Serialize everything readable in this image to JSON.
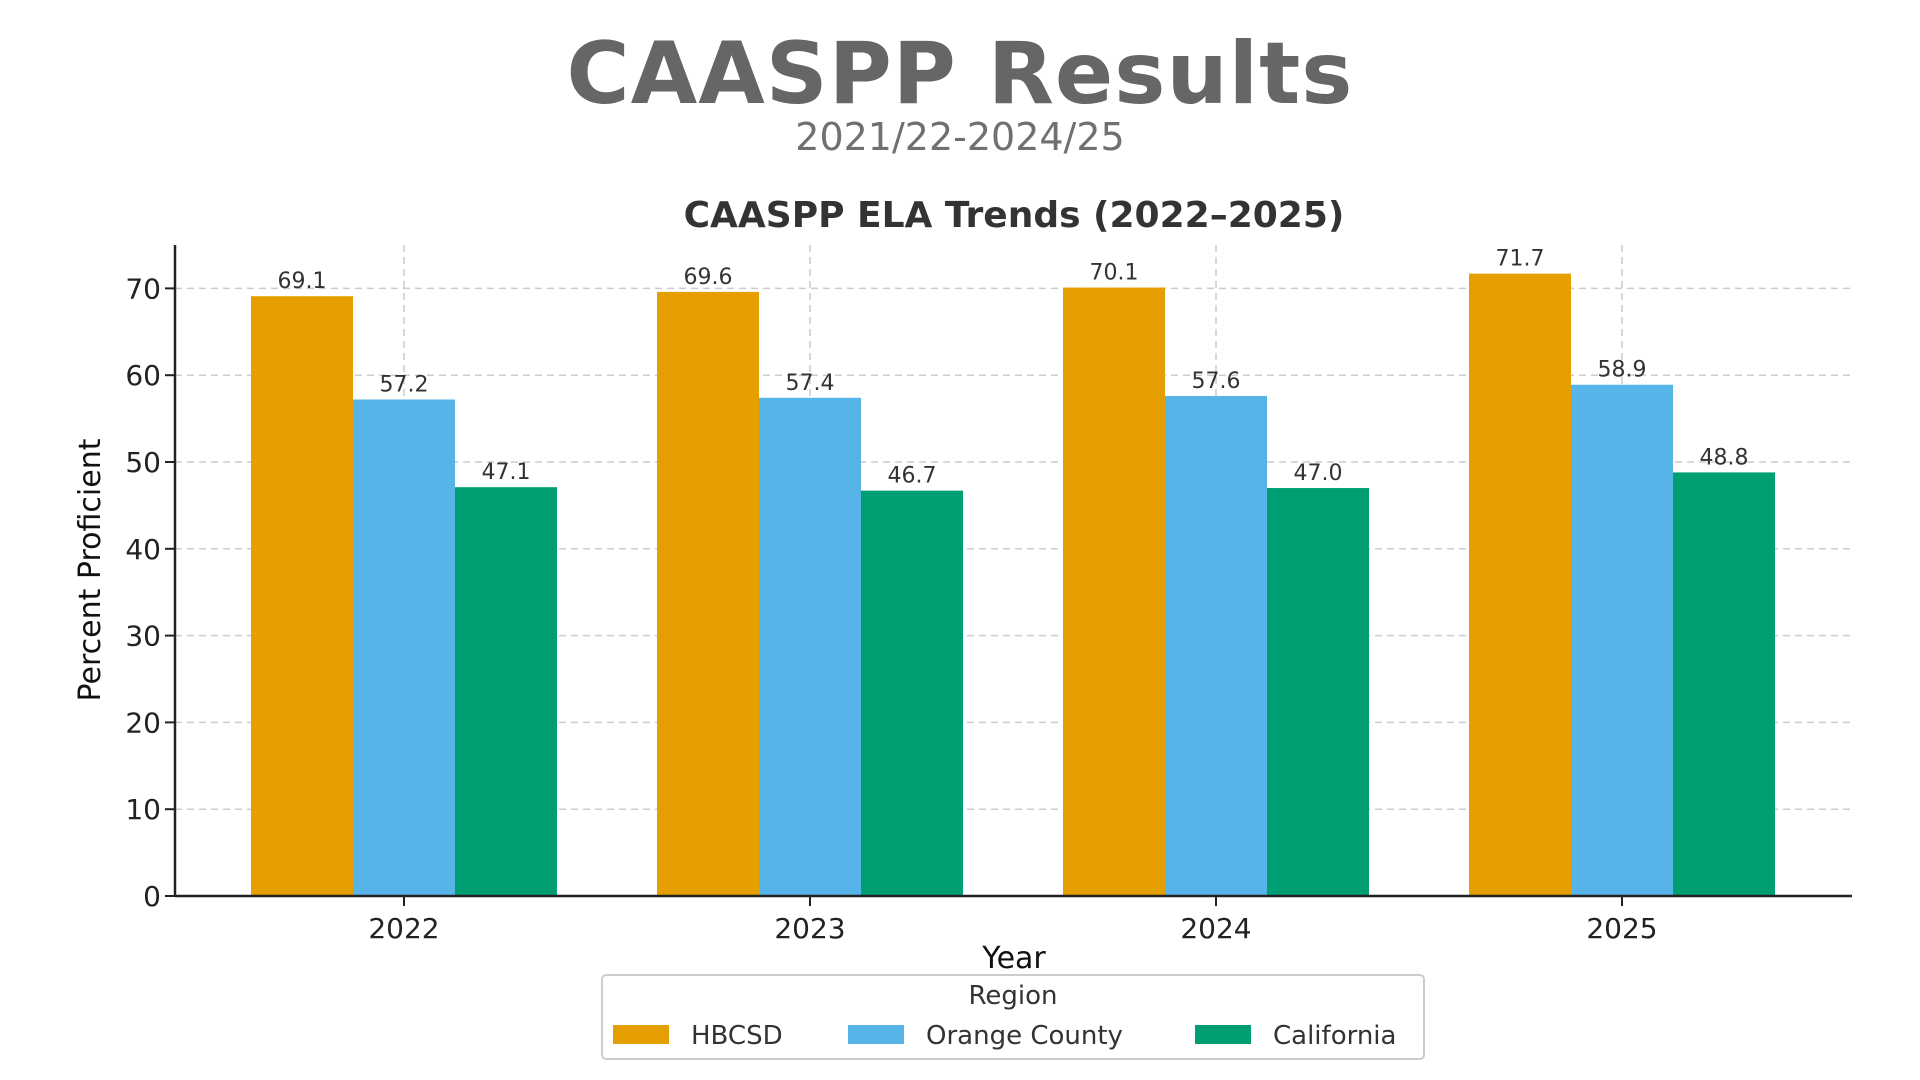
{
  "header": {
    "title": "CAASPP Results",
    "subtitle": "2021/22-2024/25"
  },
  "chart_data": {
    "type": "bar",
    "title": "CAASPP ELA Trends (2022–2025)",
    "xlabel": "Year",
    "ylabel": "Percent Proficient",
    "categories": [
      "2022",
      "2023",
      "2024",
      "2025"
    ],
    "ylim": [
      0,
      75
    ],
    "yticks": [
      0,
      10,
      20,
      30,
      40,
      50,
      60,
      70
    ],
    "grid": true,
    "legend_title": "Region",
    "legend_position": "bottom-center",
    "series": [
      {
        "name": "HBCSD",
        "color": "#E69F00",
        "values": [
          69.1,
          69.6,
          70.1,
          71.7
        ]
      },
      {
        "name": "Orange County",
        "color": "#56B4E9",
        "values": [
          57.2,
          57.4,
          57.6,
          58.9
        ]
      },
      {
        "name": "California",
        "color": "#009E73",
        "values": [
          47.1,
          46.7,
          47.0,
          48.8
        ]
      }
    ]
  }
}
